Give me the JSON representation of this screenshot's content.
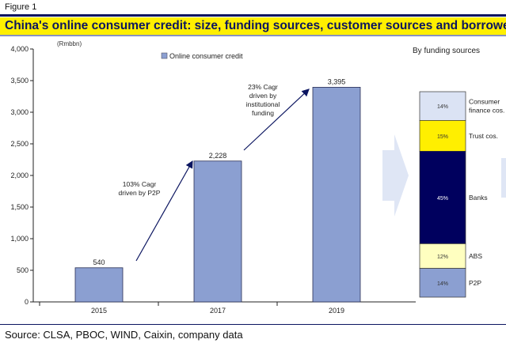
{
  "figure_label": "Figure 1",
  "title": "China's online consumer credit: size, funding sources, customer sources and borrowers",
  "source": "Source: CLSA, PBOC, WIND, Caixin, company data",
  "chart_data": [
    {
      "type": "bar",
      "title": "",
      "unit_label": "(Rmbbn)",
      "legend": [
        "Online consumer credit"
      ],
      "legend_placement": "top-center",
      "categories": [
        "2015",
        "2017",
        "2019"
      ],
      "values": [
        540,
        2228,
        3395
      ],
      "data_labels": [
        "540",
        "2,228",
        "3,395"
      ],
      "ylim": [
        0,
        4000
      ],
      "yticks": [
        0,
        500,
        1000,
        1500,
        2000,
        2500,
        3000,
        3500,
        4000
      ],
      "ytick_labels": [
        "0",
        "500",
        "1,000",
        "1,500",
        "2,000",
        "2,500",
        "3,000",
        "3,500",
        "4,000"
      ],
      "annotations": [
        {
          "text": [
            "103% Cagr",
            "driven by P2P"
          ]
        },
        {
          "text": [
            "23% Cagr",
            "driven by",
            "institutional",
            "funding"
          ]
        }
      ],
      "colors": {
        "bar": "#8b9fd1"
      }
    },
    {
      "type": "bar",
      "stacked": true,
      "title": "By funding sources",
      "segments": [
        {
          "name": "Consumer finance cos.",
          "lines": [
            "Consumer",
            "finance cos."
          ],
          "value": 14,
          "label": "14%",
          "color": "#dbe3f4"
        },
        {
          "name": "Trust cos.",
          "lines": [
            "Trust cos."
          ],
          "value": 15,
          "label": "15%",
          "color": "#ffef00"
        },
        {
          "name": "Banks",
          "lines": [
            "Banks"
          ],
          "value": 45,
          "label": "45%",
          "color": "#00005e"
        },
        {
          "name": "ABS",
          "lines": [
            "ABS"
          ],
          "value": 12,
          "label": "12%",
          "color": "#ffffc0"
        },
        {
          "name": "P2P",
          "lines": [
            "P2P"
          ],
          "value": 14,
          "label": "14%",
          "color": "#8b9fd1"
        }
      ]
    }
  ]
}
